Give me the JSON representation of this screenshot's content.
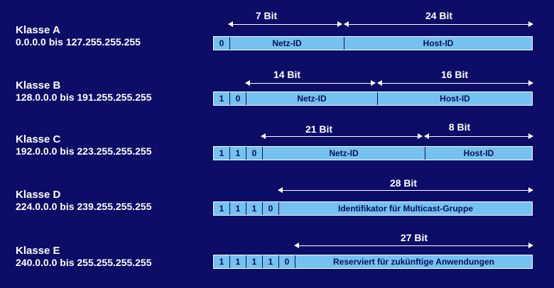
{
  "colors": {
    "background": "#0b0d66",
    "bar_fill": "#74c2f0",
    "text": "#ffffff"
  },
  "classes": [
    {
      "name": "Klasse A",
      "range": "0.0.0.0 bis 127.255.255.255",
      "bits": [
        "0"
      ],
      "fields": [
        "Netz-ID",
        "Host-ID"
      ],
      "spans": [
        {
          "label": "7 Bit"
        },
        {
          "label": "24 Bit"
        }
      ]
    },
    {
      "name": "Klasse B",
      "range": "128.0.0.0 bis 191.255.255.255",
      "bits": [
        "1",
        "0"
      ],
      "fields": [
        "Netz-ID",
        "Host-ID"
      ],
      "spans": [
        {
          "label": "14 Bit"
        },
        {
          "label": "16 Bit"
        }
      ]
    },
    {
      "name": "Klasse C",
      "range": "192.0.0.0 bis 223.255.255.255",
      "bits": [
        "1",
        "1",
        "0"
      ],
      "fields": [
        "Netz-ID",
        "Host-ID"
      ],
      "spans": [
        {
          "label": "21 Bit"
        },
        {
          "label": "8 Bit"
        }
      ]
    },
    {
      "name": "Klasse D",
      "range": "224.0.0.0 bis 239.255.255.255",
      "bits": [
        "1",
        "1",
        "1",
        "0"
      ],
      "fields": [
        "Identifikator für Multicast-Gruppe"
      ],
      "spans": [
        {
          "label": "28 Bit"
        }
      ]
    },
    {
      "name": "Klasse E",
      "range": "240.0.0.0 bis 255.255.255.255",
      "bits": [
        "1",
        "1",
        "1",
        "1",
        "0"
      ],
      "fields": [
        "Reserviert für zukünftige Anwendungen"
      ],
      "spans": [
        {
          "label": "27 Bit"
        }
      ]
    }
  ]
}
